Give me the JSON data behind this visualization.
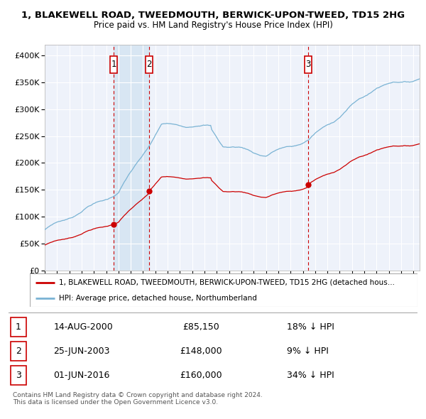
{
  "title1": "1, BLAKEWELL ROAD, TWEEDMOUTH, BERWICK-UPON-TWEED, TD15 2HG",
  "title2": "Price paid vs. HM Land Registry's House Price Index (HPI)",
  "legend_line1": "1, BLAKEWELL ROAD, TWEEDMOUTH, BERWICK-UPON-TWEED, TD15 2HG (detached hous…",
  "legend_line2": "HPI: Average price, detached house, Northumberland",
  "table": [
    {
      "num": "1",
      "date": "14-AUG-2000",
      "price": "£85,150",
      "pct": "18% ↓ HPI"
    },
    {
      "num": "2",
      "date": "25-JUN-2003",
      "price": "£148,000",
      "pct": "9% ↓ HPI"
    },
    {
      "num": "3",
      "date": "01-JUN-2016",
      "price": "£160,000",
      "pct": "34% ↓ HPI"
    }
  ],
  "footer": "Contains HM Land Registry data © Crown copyright and database right 2024.\nThis data is licensed under the Open Government Licence v3.0.",
  "sale1_date": 2000.617,
  "sale1_price": 85150,
  "sale2_date": 2003.486,
  "sale2_price": 148000,
  "sale3_date": 2016.415,
  "sale3_price": 160000,
  "hpi_color": "#7ab3d4",
  "price_color": "#cc0000",
  "bg_color": "#ffffff",
  "plot_bg": "#eef2fa",
  "grid_color": "#ffffff",
  "shade_color": "#d8e6f3",
  "ylim": [
    0,
    420000
  ],
  "xlim_start": 1995.0,
  "xlim_end": 2025.5
}
